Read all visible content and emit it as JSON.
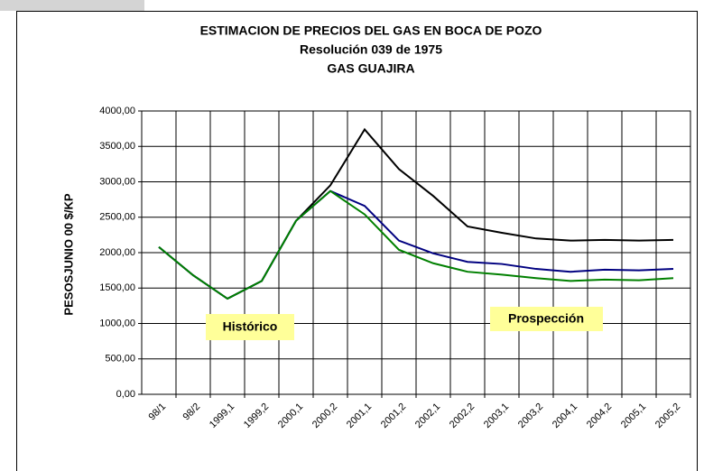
{
  "chart_data": {
    "type": "line",
    "title": "ESTIMACION DE PRECIOS DEL GAS EN BOCA DE POZO",
    "subtitle": [
      "Resolución 039 de 1975",
      "GAS GUAJIRA"
    ],
    "y_label": "PESOSJUNIO 00 $/KP",
    "annotations": [
      "Histórico",
      "Prospección"
    ],
    "categories": [
      "98/1",
      "98/2",
      "1999,1",
      "1999,2",
      "2000,1",
      "2000,2",
      "2001,1",
      "2001,2",
      "2002,1",
      "2002,2",
      "2003,1",
      "2003,2",
      "2004,1",
      "2004,2",
      "2005,1",
      "2005,2"
    ],
    "series": [
      {
        "color": "#000000",
        "values": [
          2080,
          1680,
          1350,
          1600,
          2450,
          2950,
          3740,
          3180,
          2800,
          2370,
          2280,
          2200,
          2170,
          2180,
          2170,
          2180
        ]
      },
      {
        "color": "#000080",
        "values": [
          2080,
          1680,
          1350,
          1600,
          2450,
          2870,
          2660,
          2170,
          1990,
          1870,
          1840,
          1770,
          1730,
          1760,
          1750,
          1770
        ]
      },
      {
        "color": "#008000",
        "values": [
          2080,
          1680,
          1350,
          1600,
          2450,
          2870,
          2540,
          2040,
          1850,
          1730,
          1690,
          1640,
          1600,
          1620,
          1610,
          1640
        ]
      }
    ],
    "ylim": [
      0,
      4000
    ],
    "yticks": [
      {
        "value": 0,
        "label": "0,00"
      },
      {
        "value": 500,
        "label": "500,00"
      },
      {
        "value": 1000,
        "label": "1000,00"
      },
      {
        "value": 1500,
        "label": "1500,00"
      },
      {
        "value": 2000,
        "label": "2000,00"
      },
      {
        "value": 2500,
        "label": "2500,00"
      },
      {
        "value": 3000,
        "label": "3000,00"
      },
      {
        "value": 3500,
        "label": "3500,00"
      },
      {
        "value": 4000,
        "label": "4000,00"
      }
    ],
    "grid": true
  }
}
